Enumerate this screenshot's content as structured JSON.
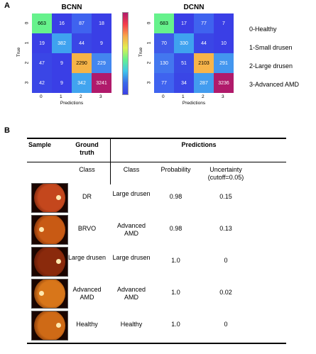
{
  "panelA": {
    "letter": "A",
    "matrices": [
      {
        "title": "BCNN",
        "values": [
          [
            663,
            16,
            87,
            18
          ],
          [
            19,
            382,
            44,
            9
          ],
          [
            47,
            9,
            2290,
            229
          ],
          [
            42,
            9,
            342,
            3241
          ]
        ],
        "colors": [
          [
            "#66f28c",
            "#3a3fe6",
            "#3f63ef",
            "#3a3fe6"
          ],
          [
            "#3a3fe6",
            "#3fa2ef",
            "#3a46e6",
            "#3a3fe6"
          ],
          [
            "#3a46e6",
            "#3a3fe6",
            "#f5b347",
            "#4386ef"
          ],
          [
            "#3a46e6",
            "#3a3fe6",
            "#41a4ef",
            "#b01a6b"
          ]
        ]
      },
      {
        "title": "DCNN",
        "values": [
          [
            683,
            17,
            77,
            7
          ],
          [
            70,
            330,
            44,
            10
          ],
          [
            130,
            51,
            2103,
            291
          ],
          [
            77,
            34,
            287,
            3236
          ]
        ],
        "colors": [
          [
            "#66f28c",
            "#3a3fe6",
            "#3f63ef",
            "#3a3fe6"
          ],
          [
            "#3f5ae9",
            "#3fa2ef",
            "#3a46e6",
            "#3a3fe6"
          ],
          [
            "#4377ef",
            "#3a4be6",
            "#f7b44a",
            "#4396ef"
          ],
          [
            "#3f63ef",
            "#3a46e6",
            "#429cef",
            "#b01a6b"
          ]
        ]
      }
    ],
    "tick_labels": [
      "0",
      "1",
      "2",
      "3"
    ],
    "xlabel": "Predictions",
    "ylabel": "True",
    "legend": [
      "0-Healthy",
      "1-Small drusen",
      "2-Large drusen",
      "3-Advanced AMD"
    ]
  },
  "panelB": {
    "letter": "B",
    "headers": {
      "sample": "Sample",
      "ground_truth": "Ground truth",
      "predictions": "Predictions",
      "class_gt": "Class",
      "class_pred": "Class",
      "probability": "Probability",
      "uncertainty": "Uncertainty (cutoff=0.05)"
    },
    "rows": [
      {
        "gt": "DR",
        "pred": "Large drusen",
        "prob": "0.98",
        "unc": "0.15"
      },
      {
        "gt": "BRVO",
        "pred": "Advanced AMD",
        "prob": "0.98",
        "unc": "0.13"
      },
      {
        "gt": "Large drusen",
        "pred": "Large drusen",
        "prob": "1.0",
        "unc": "0"
      },
      {
        "gt": "Advanced AMD",
        "pred": "Advanced AMD",
        "prob": "1.0",
        "unc": "0.02"
      },
      {
        "gt": "Healthy",
        "pred": "Healthy",
        "prob": "1.0",
        "unc": "0"
      }
    ],
    "fundus_colors": [
      "#c4471d",
      "#c85a14",
      "#8a2a0c",
      "#d8761a",
      "#cf6a16"
    ]
  }
}
